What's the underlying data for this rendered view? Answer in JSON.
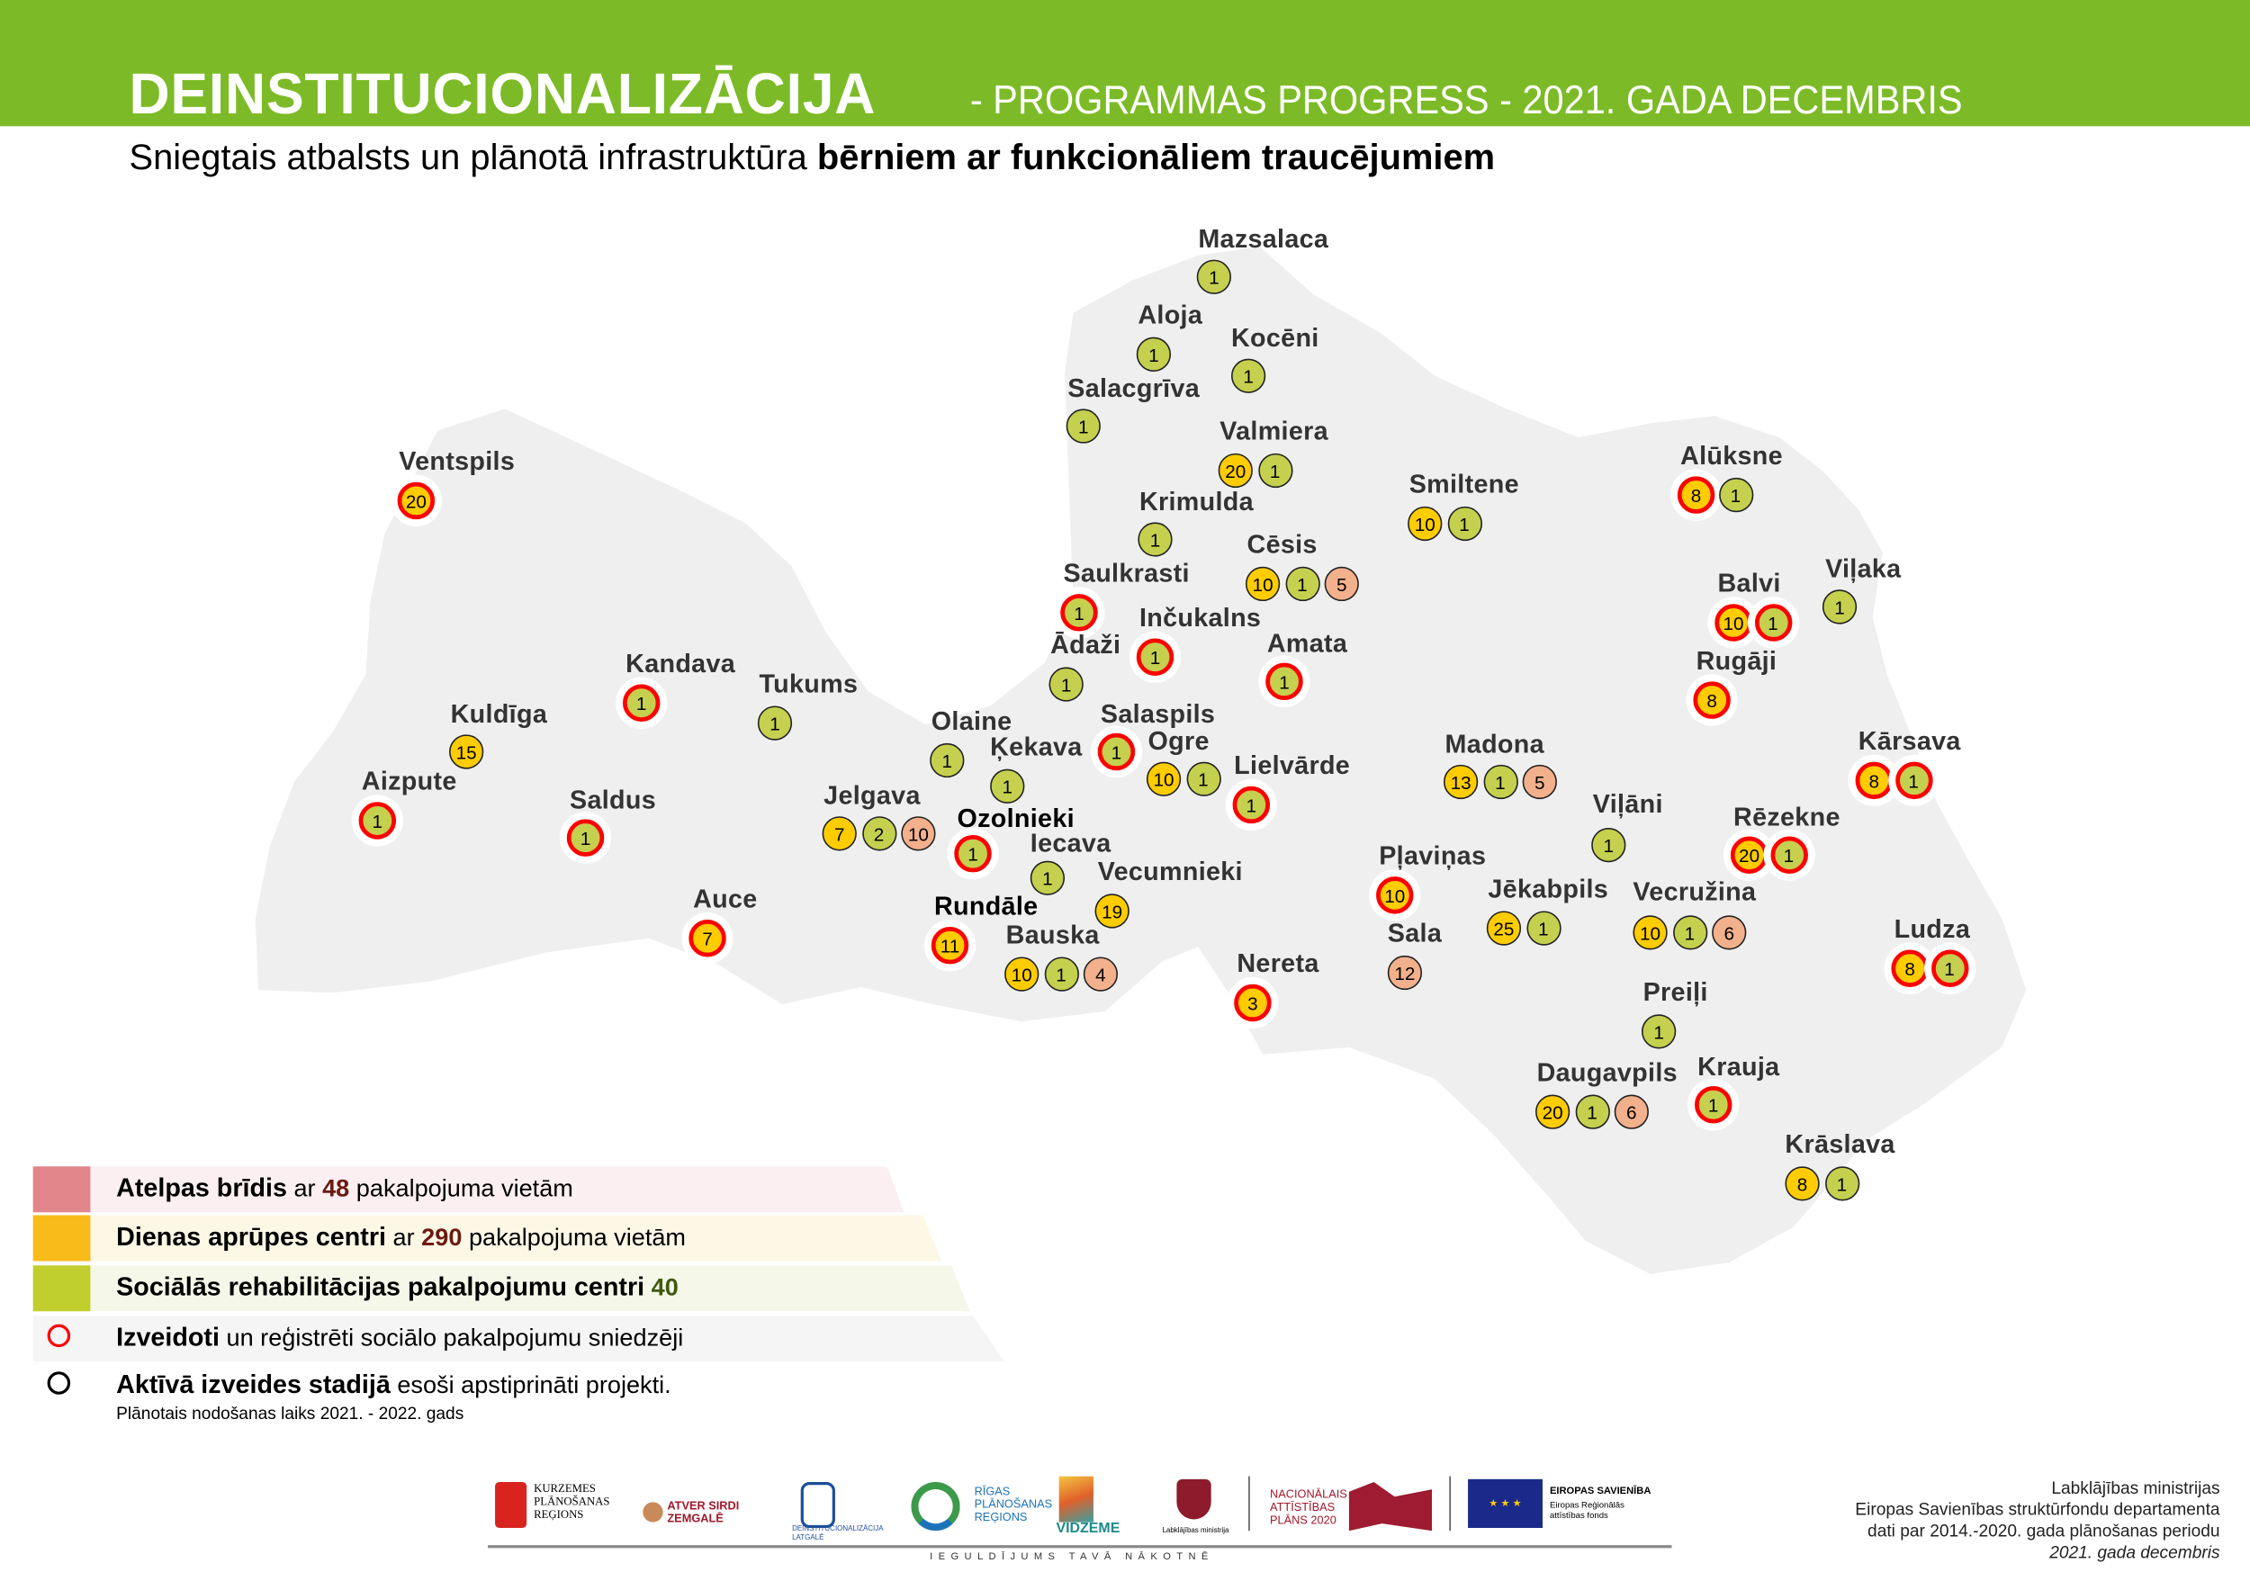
{
  "header": {
    "title": "DEINSTITUCIONALIZĀCIJA",
    "title_rest": "-  PROGRAMMAS PROGRESS  -  2021. GADA  DECEMBRIS",
    "subtitle_normal": "Sniegtais atbalsts un plānotā infrastruktūra ",
    "subtitle_bold": "bērniem ar funkcionāliem traucējumiem"
  },
  "colors": {
    "header_green": "#7CBB27",
    "day_care": "#FFCC00",
    "rehab": "#C5D04E",
    "respite": "#F2B08C",
    "respite_legend": "#E3868C",
    "established_ring": "#FF0000",
    "map_fill": "#EFEFEF"
  },
  "cities": [
    {
      "name": "Mazsalaca",
      "badges": [
        {
          "v": "1",
          "t": "rehab"
        }
      ]
    },
    {
      "name": "Aloja",
      "badges": [
        {
          "v": "1",
          "t": "rehab"
        }
      ]
    },
    {
      "name": "Kocēni",
      "badges": [
        {
          "v": "1",
          "t": "rehab"
        }
      ]
    },
    {
      "name": "Salacgrīva",
      "badges": [
        {
          "v": "1",
          "t": "rehab"
        }
      ]
    },
    {
      "name": "Valmiera",
      "badges": [
        {
          "v": "20",
          "t": "day"
        },
        {
          "v": "1",
          "t": "rehab"
        }
      ]
    },
    {
      "name": "Krimulda",
      "badges": [
        {
          "v": "1",
          "t": "rehab"
        }
      ]
    },
    {
      "name": "Cēsis",
      "badges": [
        {
          "v": "10",
          "t": "day"
        },
        {
          "v": "1",
          "t": "rehab"
        },
        {
          "v": "5",
          "t": "respite"
        }
      ]
    },
    {
      "name": "Smiltene",
      "badges": [
        {
          "v": "10",
          "t": "day"
        },
        {
          "v": "1",
          "t": "rehab"
        }
      ]
    },
    {
      "name": "Alūksne",
      "badges": [
        {
          "v": "8",
          "t": "day",
          "est": true
        },
        {
          "v": "1",
          "t": "rehab"
        }
      ]
    },
    {
      "name": "Balvi",
      "badges": [
        {
          "v": "10",
          "t": "day",
          "est": true
        },
        {
          "v": "1",
          "t": "rehab",
          "est": true
        }
      ]
    },
    {
      "name": "Viļaka",
      "badges": [
        {
          "v": "1",
          "t": "rehab"
        }
      ]
    },
    {
      "name": "Rugāji",
      "badges": [
        {
          "v": "8",
          "t": "day",
          "est": true
        }
      ]
    },
    {
      "name": "Saulkrasti",
      "badges": [
        {
          "v": "1",
          "t": "rehab",
          "est": true
        }
      ]
    },
    {
      "name": "Inčukalns",
      "badges": [
        {
          "v": "1",
          "t": "rehab",
          "est": true
        }
      ]
    },
    {
      "name": "Ādaži",
      "badges": [
        {
          "v": "1",
          "t": "rehab"
        }
      ]
    },
    {
      "name": "Amata",
      "badges": [
        {
          "v": "1",
          "t": "rehab",
          "est": true
        }
      ]
    },
    {
      "name": "Ventspils",
      "badges": [
        {
          "v": "20",
          "t": "day",
          "est": true
        }
      ]
    },
    {
      "name": "Kandava",
      "badges": [
        {
          "v": "1",
          "t": "rehab",
          "est": true
        }
      ]
    },
    {
      "name": "Tukums",
      "badges": [
        {
          "v": "1",
          "t": "rehab"
        }
      ]
    },
    {
      "name": "Kuldīga",
      "badges": [
        {
          "v": "15",
          "t": "day"
        }
      ]
    },
    {
      "name": "Aizpute",
      "badges": [
        {
          "v": "1",
          "t": "rehab",
          "est": true
        }
      ]
    },
    {
      "name": "Saldus",
      "badges": [
        {
          "v": "1",
          "t": "rehab",
          "est": true
        }
      ]
    },
    {
      "name": "Auce",
      "badges": [
        {
          "v": "7",
          "t": "day",
          "est": true
        }
      ]
    },
    {
      "name": "Olaine",
      "badges": [
        {
          "v": "1",
          "t": "rehab"
        }
      ]
    },
    {
      "name": "Ķekava",
      "badges": [
        {
          "v": "1",
          "t": "rehab"
        }
      ]
    },
    {
      "name": "Salaspils",
      "badges": [
        {
          "v": "1",
          "t": "rehab",
          "est": true
        }
      ]
    },
    {
      "name": "Ogre",
      "badges": [
        {
          "v": "10",
          "t": "day"
        },
        {
          "v": "1",
          "t": "rehab"
        }
      ]
    },
    {
      "name": "Lielvārde",
      "badges": [
        {
          "v": "1",
          "t": "rehab",
          "est": true
        }
      ]
    },
    {
      "name": "Jelgava",
      "badges": [
        {
          "v": "7",
          "t": "day"
        },
        {
          "v": "2",
          "t": "rehab"
        },
        {
          "v": "10",
          "t": "respite"
        }
      ]
    },
    {
      "name": "Ozolnieki",
      "badges": [
        {
          "v": "1",
          "t": "rehab",
          "est": true
        }
      ]
    },
    {
      "name": "Iecava",
      "badges": [
        {
          "v": "1",
          "t": "rehab"
        }
      ]
    },
    {
      "name": "Vecumnieki",
      "badges": [
        {
          "v": "19",
          "t": "day"
        }
      ]
    },
    {
      "name": "Rundāle",
      "badges": [
        {
          "v": "11",
          "t": "day",
          "est": true
        }
      ]
    },
    {
      "name": "Bauska",
      "badges": [
        {
          "v": "10",
          "t": "day"
        },
        {
          "v": "1",
          "t": "rehab"
        },
        {
          "v": "4",
          "t": "respite"
        }
      ]
    },
    {
      "name": "Nereta",
      "badges": [
        {
          "v": "3",
          "t": "day",
          "est": true
        }
      ]
    },
    {
      "name": "Pļaviņas",
      "badges": [
        {
          "v": "10",
          "t": "day",
          "est": true
        }
      ]
    },
    {
      "name": "Sala",
      "badges": [
        {
          "v": "12",
          "t": "respite"
        }
      ]
    },
    {
      "name": "Madona",
      "badges": [
        {
          "v": "13",
          "t": "day"
        },
        {
          "v": "1",
          "t": "rehab"
        },
        {
          "v": "5",
          "t": "respite"
        }
      ]
    },
    {
      "name": "Viļāni",
      "badges": [
        {
          "v": "1",
          "t": "rehab"
        }
      ]
    },
    {
      "name": "Jēkabpils",
      "badges": [
        {
          "v": "25",
          "t": "day"
        },
        {
          "v": "1",
          "t": "rehab"
        }
      ]
    },
    {
      "name": "Vecružina",
      "badges": [
        {
          "v": "10",
          "t": "day"
        },
        {
          "v": "1",
          "t": "rehab"
        },
        {
          "v": "6",
          "t": "respite"
        }
      ]
    },
    {
      "name": "Rēzekne",
      "badges": [
        {
          "v": "20",
          "t": "day",
          "est": true
        },
        {
          "v": "1",
          "t": "rehab",
          "est": true
        }
      ]
    },
    {
      "name": "Kārsava",
      "badges": [
        {
          "v": "8",
          "t": "day",
          "est": true
        },
        {
          "v": "1",
          "t": "rehab",
          "est": true
        }
      ]
    },
    {
      "name": "Ludza",
      "badges": [
        {
          "v": "8",
          "t": "day",
          "est": true
        },
        {
          "v": "1",
          "t": "rehab",
          "est": true
        }
      ]
    },
    {
      "name": "Preiļi",
      "badges": [
        {
          "v": "1",
          "t": "rehab"
        }
      ]
    },
    {
      "name": "Daugavpils",
      "badges": [
        {
          "v": "20",
          "t": "day"
        },
        {
          "v": "1",
          "t": "rehab"
        },
        {
          "v": "6",
          "t": "respite"
        }
      ]
    },
    {
      "name": "Krauja",
      "badges": [
        {
          "v": "1",
          "t": "rehab",
          "est": true
        }
      ]
    },
    {
      "name": "Krāslava",
      "badges": [
        {
          "v": "8",
          "t": "day"
        },
        {
          "v": "1",
          "t": "rehab"
        }
      ]
    }
  ],
  "legend": {
    "respite": {
      "bold": "Atelpas brīdis",
      "pre": "  ar ",
      "num": "48",
      "post": " pakalpojuma vietām"
    },
    "day": {
      "bold": "Dienas aprūpes centri",
      "pre": "  ar ",
      "num": "290",
      "post": " pakalpojuma vietām"
    },
    "rehab": {
      "bold": "Sociālās rehabilitācijas pakalpojumu centri",
      "num": "40"
    },
    "established": {
      "bold": "Izveidoti",
      "rest": " un reģistrēti sociālo pakalpojumu sniedzēji"
    },
    "active": {
      "bold": "Aktīvā izveides stadijā",
      "rest": " esoši apstiprināti projekti."
    },
    "footnote": "Plānotais nodošanas laiks 2021. - 2022. gads"
  },
  "logos": {
    "kurzeme": "KURZEMES PLĀNOŠANAS REĢIONS",
    "zemgale": "ATVER SIRDI ZEMGALĒ",
    "latgale": "DEINSTITUCIONALIZĀCIJA LATGALĒ",
    "riga": "RĪGAS PLĀNOŠANAS REĢIONS",
    "vidzeme": "VIDZEME",
    "ministry": "Labklājības ministrija",
    "nap": "NACIONĀLAIS ATTĪSTĪBAS PLĀNS 2020",
    "eu_title": "EIROPAS SAVIENĪBA",
    "eu_fund": "Eiropas Reģionālās attīstības fonds",
    "tagline": "IEGULDĪJUMS TAVĀ NĀKOTNĒ"
  },
  "credits": {
    "line1": "Labklājības ministrijas",
    "line2": "Eiropas Savienības struktūrfondu departamenta",
    "line3": "dati par 2014.-2020. gada plānošanas periodu",
    "line4": "2021. gada decembris"
  }
}
